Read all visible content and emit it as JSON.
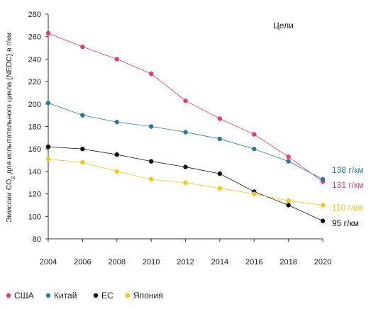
{
  "chart_data": {
    "type": "line",
    "title": "",
    "ylabel_parts": [
      "Эмиссии CO",
      "2",
      " для испытательного цикла (NEDC) в г/км"
    ],
    "xlabel": "",
    "x": [
      2004,
      2006,
      2008,
      2010,
      2012,
      2014,
      2016,
      2018,
      2020
    ],
    "xticks": [
      "2004",
      "2006",
      "2008",
      "2010",
      "2012",
      "2014",
      "2016",
      "2018",
      "2020"
    ],
    "ylim": [
      80,
      280
    ],
    "yticks": [
      "80",
      "100",
      "120",
      "140",
      "160",
      "180",
      "200",
      "220",
      "240",
      "260",
      "280"
    ],
    "grid": false,
    "legend_position": "bottom",
    "goals_label": "Цели",
    "series": [
      {
        "name": "США",
        "color": "#e23c72",
        "values": [
          263,
          251,
          240,
          227,
          203,
          187,
          173,
          153,
          131
        ],
        "target_label": "131 г/км"
      },
      {
        "name": "Китай",
        "color": "#2a7a9c",
        "values": [
          201,
          190,
          184,
          180,
          175,
          169,
          160,
          149,
          133
        ],
        "target_label": "138 г/км"
      },
      {
        "name": "ЕС",
        "color": "#111111",
        "values": [
          162,
          160,
          155,
          149,
          144,
          138,
          122,
          110,
          96
        ],
        "target_label": "95 г/км"
      },
      {
        "name": "Япония",
        "color": "#f5c518",
        "values": [
          151,
          148,
          140,
          133,
          130,
          125,
          120,
          114,
          110
        ],
        "target_label": "110 г/км"
      }
    ]
  }
}
